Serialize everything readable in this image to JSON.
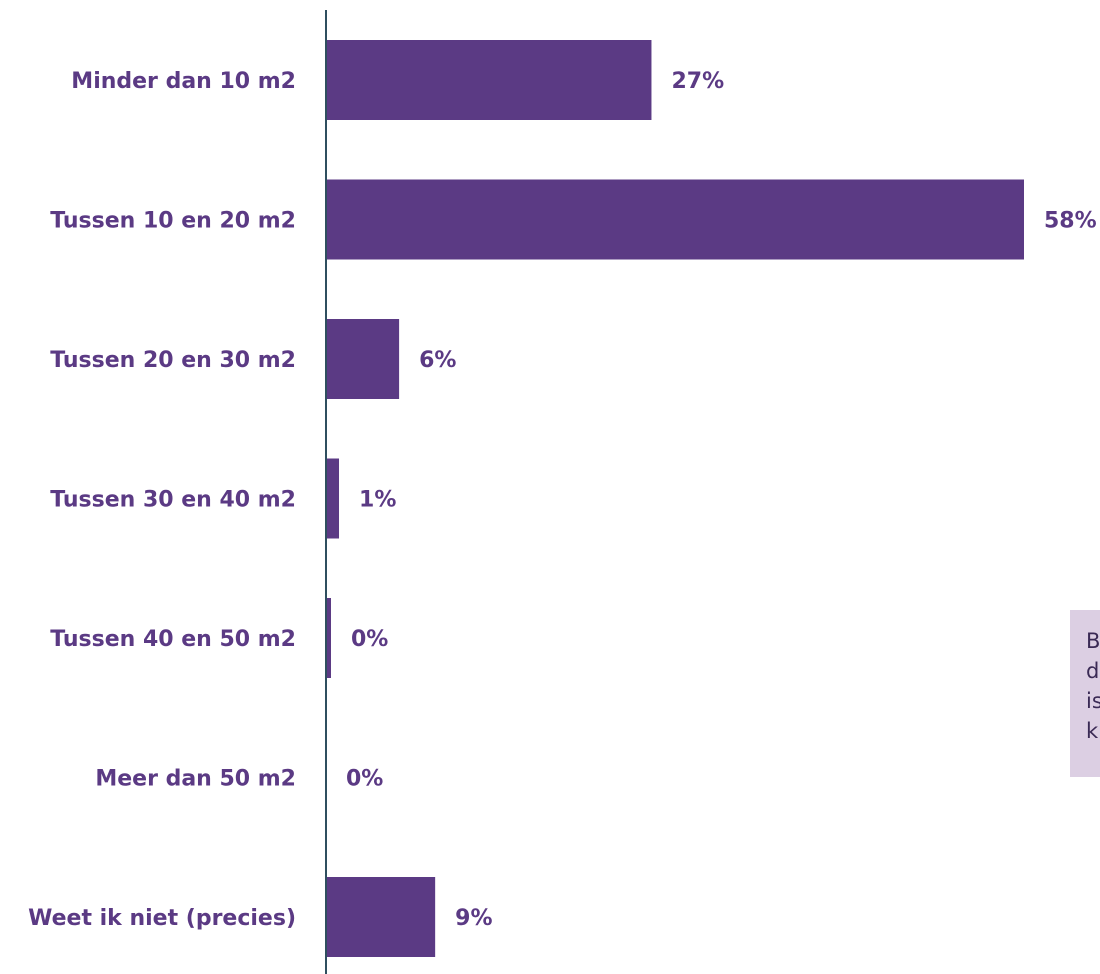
{
  "chart_data": {
    "type": "bar",
    "orientation": "horizontal",
    "categories": [
      "Minder dan 10 m2",
      "Tussen 10 en 20 m2",
      "Tussen 20 en 30 m2",
      "Tussen 30 en 40 m2",
      "Tussen 40 en 50 m2",
      "Meer dan 50 m2",
      "Weet ik niet (precies)"
    ],
    "values": [
      27,
      58,
      6,
      1,
      0,
      0,
      9
    ],
    "value_labels": [
      "27%",
      "58%",
      "6%",
      "1%",
      "0%",
      "0%",
      "9%"
    ],
    "title": "",
    "xlabel": "",
    "ylabel": "",
    "xlim": [
      0,
      58
    ],
    "grid": false,
    "legend": "none"
  },
  "note": {
    "lines": [
      "B",
      "d",
      "is",
      "k"
    ]
  },
  "colors": {
    "bar": "#5b3a84",
    "label": "#5b3a84",
    "axis": "#2f4f5f",
    "note_bg": "#dccfe3",
    "note_text": "#3a2a55"
  }
}
